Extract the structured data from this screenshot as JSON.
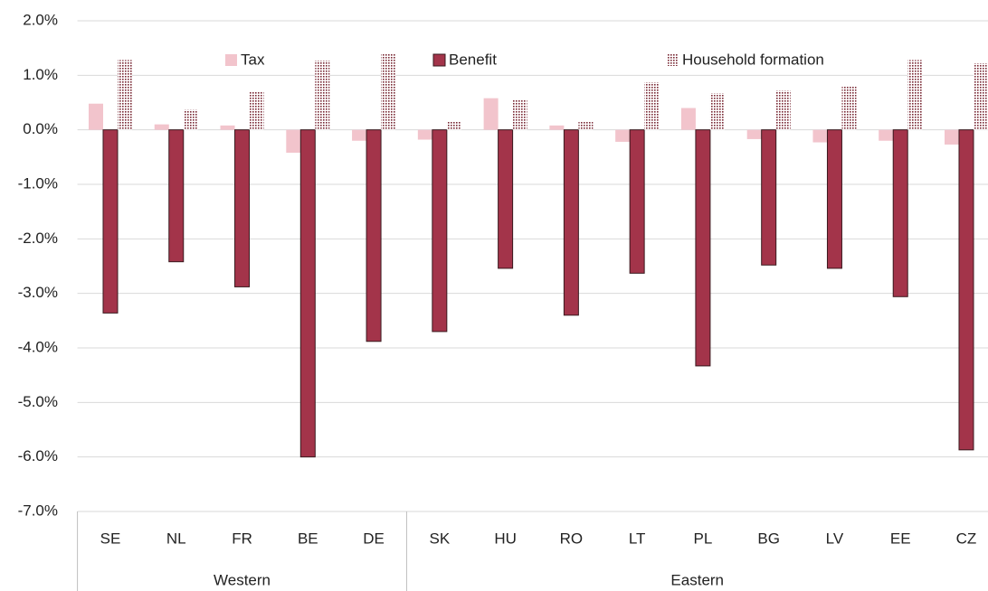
{
  "chart_data": {
    "type": "bar",
    "groups": [
      {
        "name": "Western",
        "categories": [
          "SE",
          "NL",
          "FR",
          "BE",
          "DE"
        ]
      },
      {
        "name": "Eastern",
        "categories": [
          "SK",
          "HU",
          "RO",
          "LT",
          "PL",
          "BG",
          "LV",
          "EE",
          "CZ"
        ]
      }
    ],
    "series": [
      {
        "name": "Tax",
        "color": "#f2c4cc",
        "values": [
          0.48,
          0.1,
          0.08,
          -0.42,
          -0.2,
          -0.18,
          0.58,
          0.08,
          -0.22,
          0.4,
          -0.17,
          -0.23,
          -0.2,
          -0.27
        ]
      },
      {
        "name": "Benefit",
        "color": "#a3344a",
        "values": [
          -3.36,
          -2.42,
          -2.88,
          -6.0,
          -3.88,
          -3.7,
          -2.54,
          -3.4,
          -2.63,
          -4.33,
          -2.48,
          -2.54,
          -3.06,
          -5.87
        ]
      },
      {
        "name": "Household formation",
        "color": "#7a2a36",
        "pattern": "dots",
        "values": [
          1.28,
          0.37,
          0.7,
          1.27,
          1.4,
          0.15,
          0.55,
          0.15,
          0.87,
          0.67,
          0.72,
          0.8,
          1.28,
          1.22
        ]
      }
    ],
    "ylim": [
      -7,
      2
    ],
    "yticks": [
      {
        "value": 2,
        "label": "2.0%"
      },
      {
        "value": 1,
        "label": "1.0%"
      },
      {
        "value": 0,
        "label": "0.0%"
      },
      {
        "value": -1,
        "label": "-1.0%"
      },
      {
        "value": -2,
        "label": "-2.0%"
      },
      {
        "value": -3,
        "label": "-3.0%"
      },
      {
        "value": -4,
        "label": "-4.0%"
      },
      {
        "value": -5,
        "label": "-5.0%"
      },
      {
        "value": -6,
        "label": "-6.0%"
      },
      {
        "value": -7,
        "label": "-7.0%"
      }
    ],
    "grid": true,
    "legend": "top"
  }
}
